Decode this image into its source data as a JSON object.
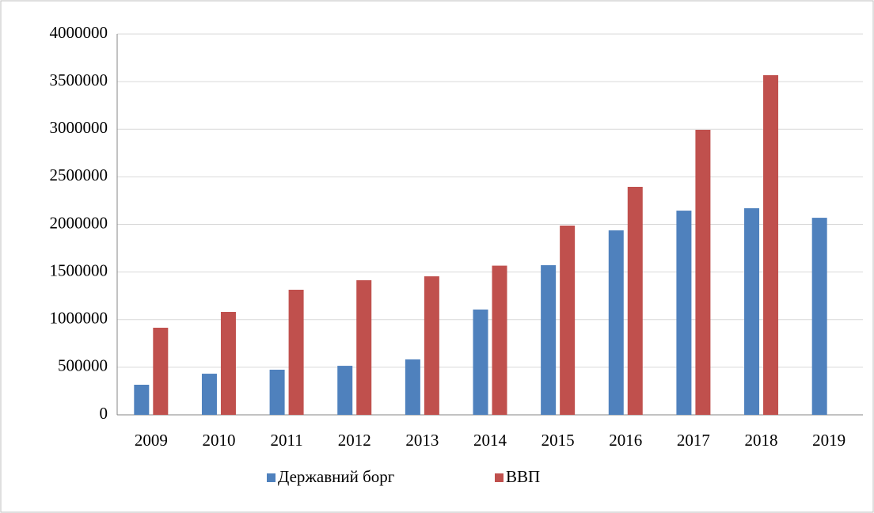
{
  "chart_data": {
    "type": "bar",
    "categories": [
      "2009",
      "2010",
      "2011",
      "2012",
      "2013",
      "2014",
      "2015",
      "2016",
      "2017",
      "2018",
      "2019"
    ],
    "series": [
      {
        "name": "Державний борг",
        "color": "#4f81bd",
        "values": [
          316000,
          432000,
          474000,
          515000,
          582000,
          1106000,
          1572000,
          1938000,
          2145000,
          2170000,
          2070000
        ]
      },
      {
        "name": "ВВП",
        "color": "#c0504d",
        "values": [
          915000,
          1081000,
          1314000,
          1414000,
          1455000,
          1567000,
          1988000,
          2395000,
          2994000,
          3568000,
          null
        ]
      }
    ],
    "ylim": [
      0,
      4000000
    ],
    "yticks": [
      0,
      500000,
      1000000,
      1500000,
      2000000,
      2500000,
      3000000,
      3500000,
      4000000
    ],
    "grid": true,
    "legend": "bottom"
  }
}
